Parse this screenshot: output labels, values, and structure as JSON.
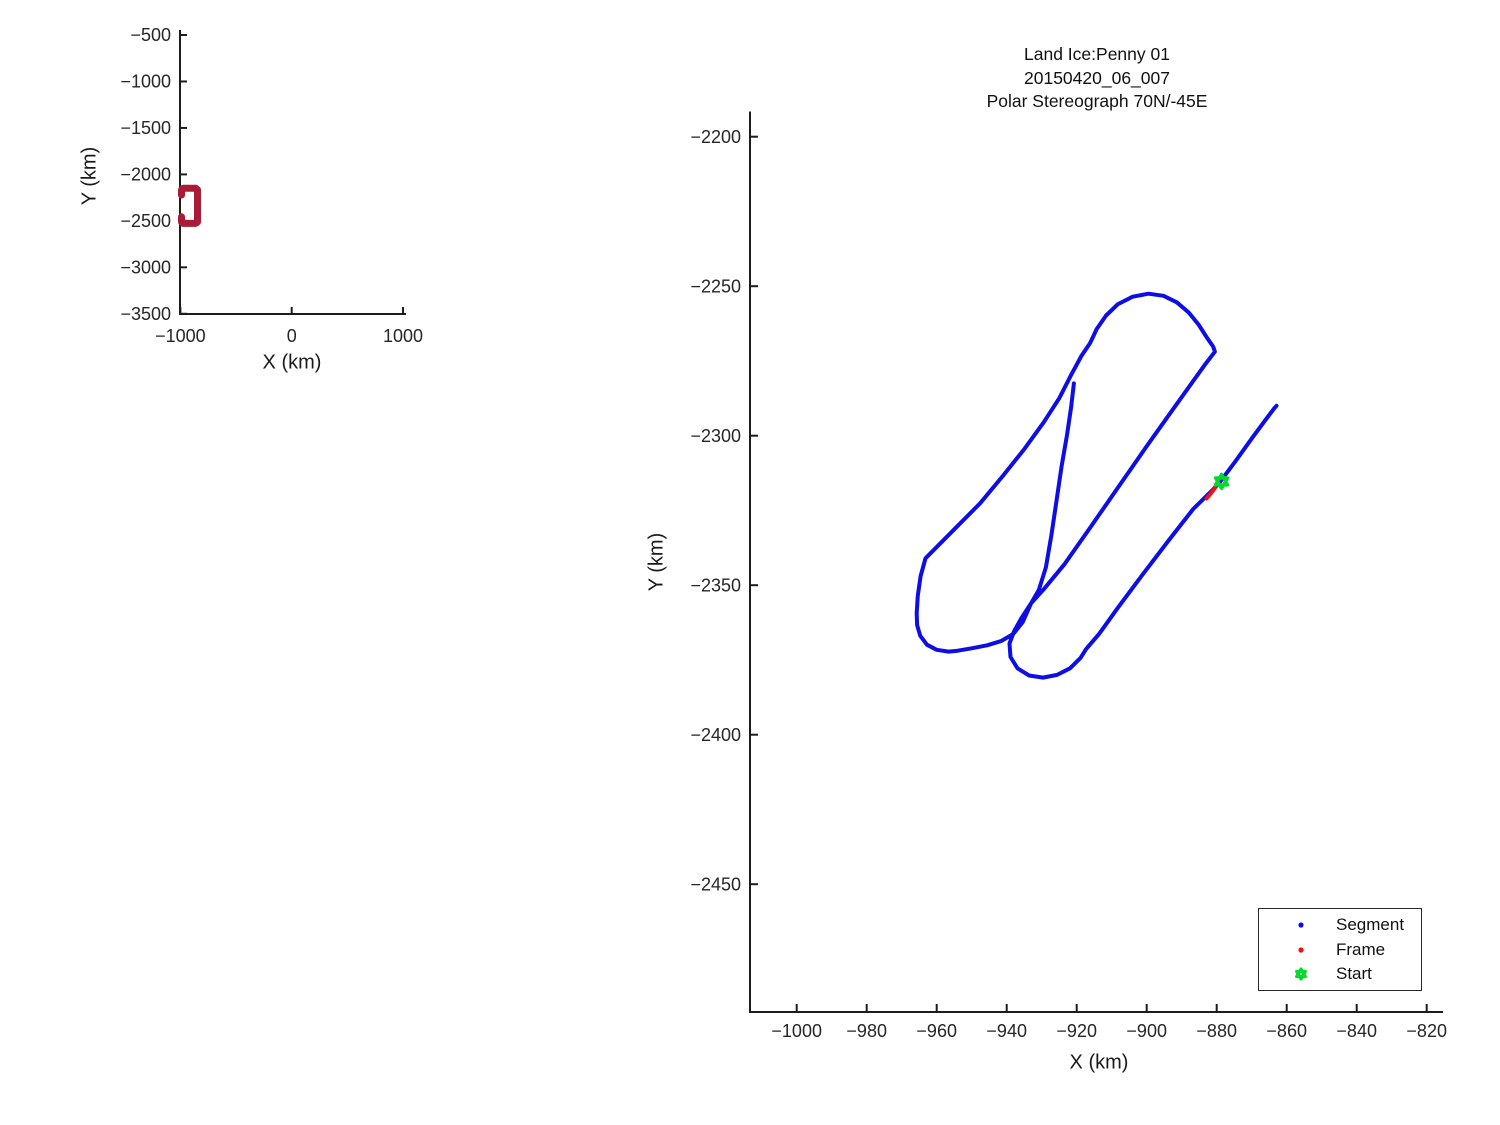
{
  "figure": {
    "background": "#FFFFFF",
    "axis_color": "#1c1c1c",
    "tick_text_color": "#262626"
  },
  "chart_data": [
    {
      "type": "line",
      "name": "overview-locator-plot",
      "title": "",
      "xlabel": "X (km)",
      "ylabel": "Y (km)",
      "xlim": [
        -1006,
        1030
      ],
      "ylim": [
        -3505,
        -445
      ],
      "xticks": [
        -1000,
        0,
        1000
      ],
      "yticks": [
        -500,
        -1000,
        -1500,
        -2000,
        -2500,
        -3000,
        -3500
      ],
      "grid": false,
      "legend_position": "none",
      "series": [
        {
          "name": "flight-track-extent",
          "color": "#A91C38",
          "linewidth": 7,
          "points": [
            [
              -990,
              -2222
            ],
            [
              -990,
              -2165
            ],
            [
              -975,
              -2150
            ],
            [
              -862,
              -2150
            ],
            [
              -846,
              -2165
            ],
            [
              -846,
              -2512
            ],
            [
              -862,
              -2527
            ],
            [
              -975,
              -2527
            ],
            [
              -990,
              -2512
            ],
            [
              -990,
              -2456
            ]
          ]
        }
      ]
    },
    {
      "type": "line",
      "name": "segment-detail-plot",
      "title_lines": [
        "Land Ice:Penny 01",
        "20150420_06_007",
        "Polar Stereograph 70N/-45E"
      ],
      "xlabel": "X (km)",
      "ylabel": "Y (km)",
      "xlim": [
        -1013.3,
        -813.9
      ],
      "ylim": [
        -2492.5,
        -2191.6
      ],
      "xticks": [
        -1000,
        -980,
        -960,
        -940,
        -920,
        -900,
        -880,
        -860,
        -840,
        -820
      ],
      "yticks": [
        -2200,
        -2250,
        -2300,
        -2350,
        -2400,
        -2450
      ],
      "grid": false,
      "legend_position": "bottom-right",
      "series": [
        {
          "name": "Segment",
          "color": "#0D0DE8",
          "linewidth": 4,
          "points": [
            [
              -920.8,
              -2282.5
            ],
            [
              -921.6,
              -2290.5
            ],
            [
              -922.8,
              -2300.0
            ],
            [
              -924.3,
              -2310.0
            ],
            [
              -925.8,
              -2322.0
            ],
            [
              -927.2,
              -2333.0
            ],
            [
              -928.8,
              -2344.0
            ],
            [
              -930.8,
              -2351.5
            ],
            [
              -933.0,
              -2356.0
            ],
            [
              -935.4,
              -2362.3
            ],
            [
              -938.1,
              -2366.3
            ],
            [
              -941.6,
              -2368.7
            ],
            [
              -945.6,
              -2370.1
            ],
            [
              -950.0,
              -2371.1
            ],
            [
              -954.0,
              -2371.9
            ],
            [
              -956.6,
              -2372.2
            ],
            [
              -960.0,
              -2371.6
            ],
            [
              -962.8,
              -2369.9
            ],
            [
              -964.7,
              -2366.9
            ],
            [
              -965.6,
              -2363.3
            ],
            [
              -965.7,
              -2359.3
            ],
            [
              -965.4,
              -2353.5
            ],
            [
              -964.6,
              -2347.0
            ],
            [
              -963.2,
              -2341.0
            ],
            [
              -955.4,
              -2331.8
            ],
            [
              -947.6,
              -2322.6
            ],
            [
              -941.0,
              -2313.3
            ],
            [
              -935.0,
              -2304.5
            ],
            [
              -929.4,
              -2295.5
            ],
            [
              -925.0,
              -2287.5
            ],
            [
              -921.5,
              -2279.5
            ],
            [
              -918.6,
              -2273.2
            ],
            [
              -916.2,
              -2269.1
            ],
            [
              -914.3,
              -2264.3
            ],
            [
              -911.6,
              -2259.8
            ],
            [
              -908.2,
              -2256.0
            ],
            [
              -904.0,
              -2253.5
            ],
            [
              -899.5,
              -2252.5
            ],
            [
              -895.2,
              -2253.2
            ],
            [
              -891.4,
              -2255.4
            ],
            [
              -888.0,
              -2258.8
            ],
            [
              -885.2,
              -2262.8
            ],
            [
              -882.8,
              -2267.2
            ],
            [
              -881.0,
              -2270.2
            ],
            [
              -880.5,
              -2271.9
            ],
            [
              -883.5,
              -2276.5
            ],
            [
              -887.5,
              -2283.0
            ],
            [
              -893.0,
              -2292.0
            ],
            [
              -900.0,
              -2303.5
            ],
            [
              -908.0,
              -2317.0
            ],
            [
              -916.0,
              -2330.5
            ],
            [
              -923.5,
              -2343.0
            ],
            [
              -929.5,
              -2351.5
            ],
            [
              -933.0,
              -2356.0
            ],
            [
              -935.8,
              -2361.0
            ],
            [
              -937.9,
              -2365.5
            ],
            [
              -939.2,
              -2369.5
            ],
            [
              -938.9,
              -2374.0
            ],
            [
              -936.9,
              -2377.8
            ],
            [
              -933.6,
              -2380.2
            ],
            [
              -929.6,
              -2380.9
            ],
            [
              -925.6,
              -2380.0
            ],
            [
              -921.9,
              -2377.8
            ],
            [
              -918.9,
              -2374.3
            ],
            [
              -917.3,
              -2371.3
            ],
            [
              -913.6,
              -2366.3
            ],
            [
              -908.2,
              -2357.5
            ],
            [
              -901.2,
              -2346.5
            ],
            [
              -893.7,
              -2335.0
            ],
            [
              -886.7,
              -2324.5
            ],
            [
              -881.2,
              -2318.2
            ],
            [
              -879.0,
              -2315.4
            ],
            [
              -874.6,
              -2308.5
            ],
            [
              -869.7,
              -2300.5
            ],
            [
              -866.1,
              -2294.8
            ],
            [
              -863.6,
              -2290.9
            ],
            [
              -862.9,
              -2290.0
            ]
          ]
        },
        {
          "name": "Frame",
          "color": "#F01111",
          "linewidth": 4,
          "points": [
            [
              -882.9,
              -2321.0
            ],
            [
              -881.6,
              -2319.2
            ],
            [
              -880.5,
              -2317.5
            ]
          ]
        },
        {
          "name": "Start",
          "color": "#00DC28",
          "marker": "hexagram",
          "size": 14,
          "points": [
            [
              -878.6,
              -2315.3
            ]
          ]
        }
      ],
      "legend": {
        "entries": [
          {
            "label": "Segment",
            "marker": "dot",
            "color": "#0D0DE8"
          },
          {
            "label": "Frame",
            "marker": "dot",
            "color": "#F01111"
          },
          {
            "label": "Start",
            "marker": "hexagram",
            "color": "#00DC28"
          }
        ]
      }
    }
  ]
}
